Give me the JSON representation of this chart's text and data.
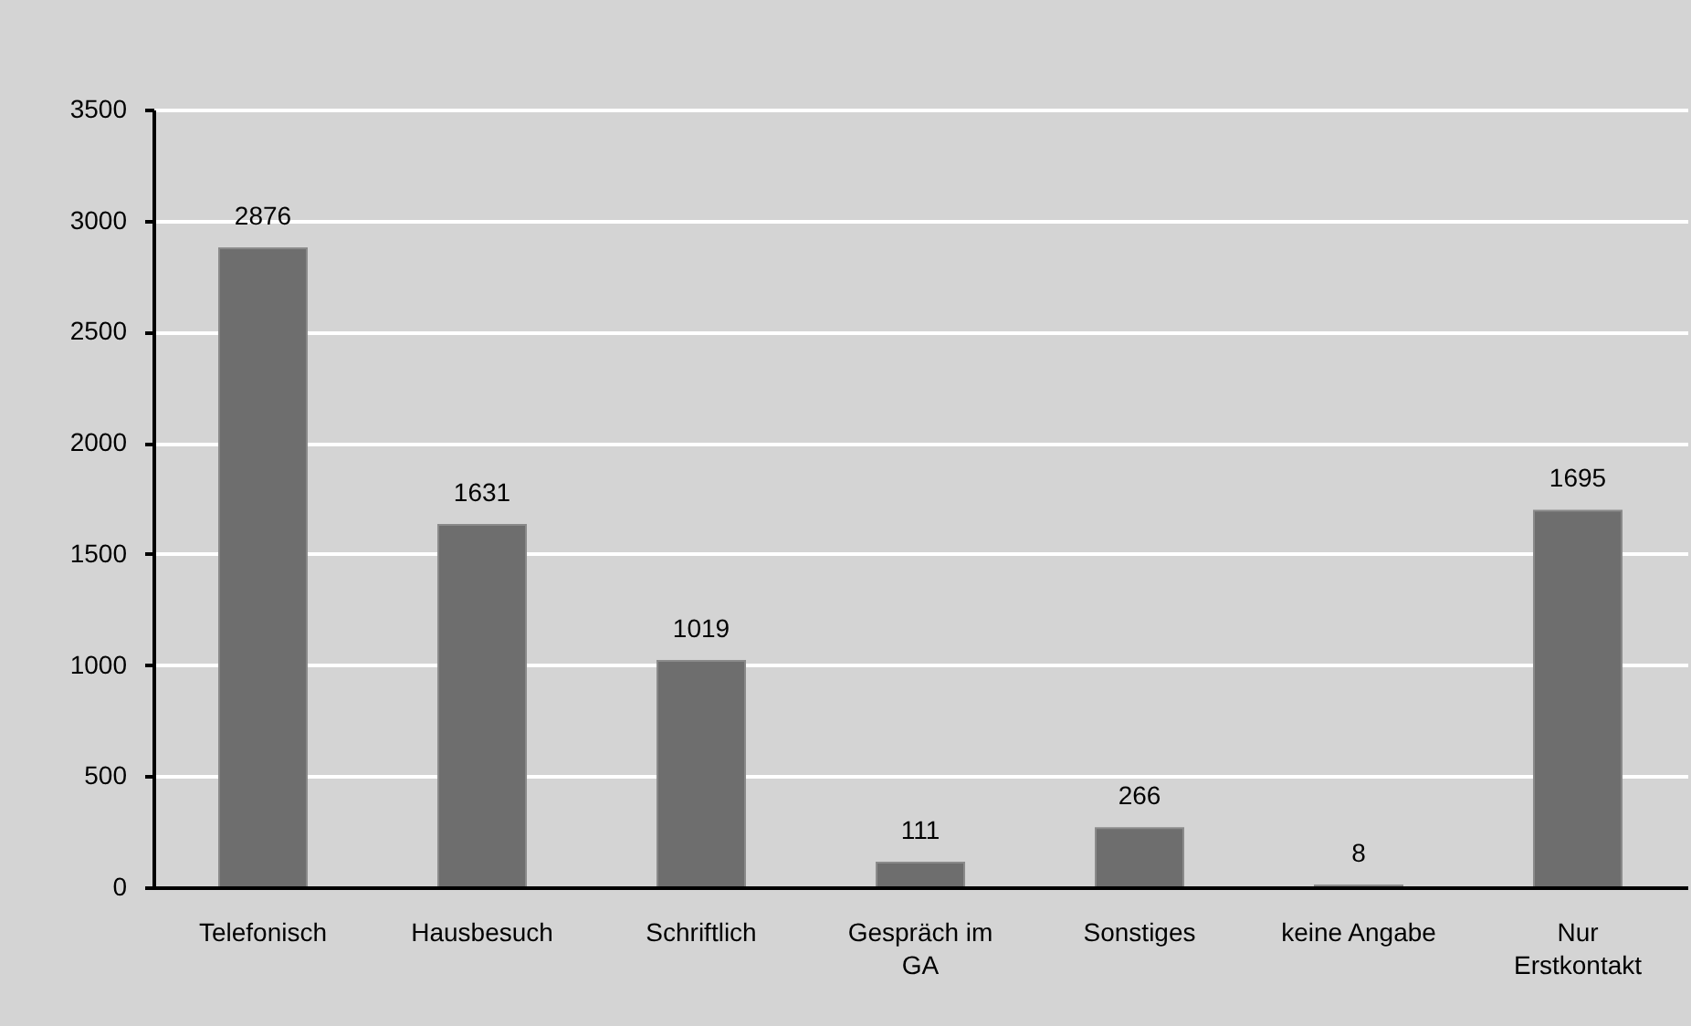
{
  "chart_data": {
    "type": "bar",
    "categories": [
      "Telefonisch",
      "Hausbesuch",
      "Schriftlich",
      "Gespräch im GA",
      "Sonstiges",
      "keine Angabe",
      "Nur Erstkontakt"
    ],
    "values": [
      2876,
      1631,
      1019,
      111,
      266,
      8,
      1695
    ],
    "color": "#6e6e6e",
    "ylim": [
      0,
      3500
    ],
    "yticks": [
      0,
      500,
      1000,
      1500,
      2000,
      2500,
      3000,
      3500
    ],
    "grid": "y",
    "data_labels": true
  }
}
